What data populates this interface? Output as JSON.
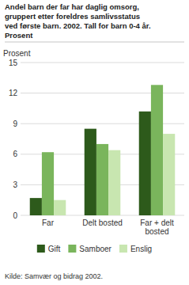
{
  "chart_data": {
    "type": "bar",
    "title": "Andel barn der far har daglig omsorg,\ngruppert etter foreldres samlivsstatus\nved første barn. 2002. Tall for barn 0-4 år.\nProsent",
    "y_label": "Prosent",
    "annotations": [
      "Kilde: Samvær og bidrag 2002."
    ],
    "categories": [
      "Far",
      "Delt bosted",
      "Far + delt\nbosted"
    ],
    "series": [
      {
        "name": "Gift",
        "color": "#2d5a1b",
        "values": [
          1.7,
          8.5,
          10.2
        ]
      },
      {
        "name": "Samboer",
        "color": "#7ab55c",
        "values": [
          6.2,
          7.0,
          12.8
        ]
      },
      {
        "name": "Enslig",
        "color": "#c8e6b0",
        "values": [
          1.5,
          6.4,
          8.0
        ]
      }
    ],
    "ylim": [
      0,
      15
    ],
    "yticks": [
      0,
      3,
      6,
      9,
      12,
      15
    ],
    "grid": true,
    "legend": "bottom"
  }
}
